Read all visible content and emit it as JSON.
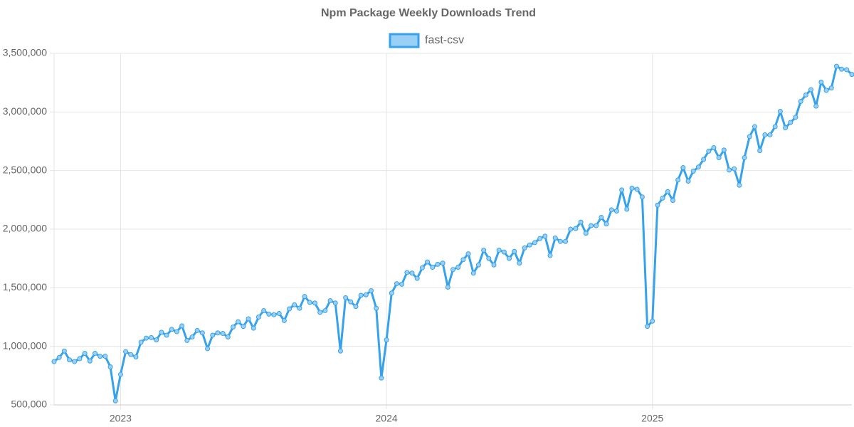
{
  "chart_data": {
    "type": "line",
    "title": "Npm Package Weekly Downloads Trend",
    "categories": [
      null,
      null,
      null,
      null,
      null,
      null,
      null,
      null,
      null,
      null,
      null,
      null,
      null,
      "2023",
      null,
      null,
      null,
      null,
      null,
      null,
      null,
      null,
      null,
      null,
      null,
      null,
      null,
      null,
      null,
      null,
      null,
      null,
      null,
      null,
      null,
      null,
      null,
      null,
      null,
      null,
      null,
      null,
      null,
      null,
      null,
      null,
      null,
      null,
      null,
      null,
      null,
      null,
      null,
      null,
      null,
      null,
      null,
      null,
      null,
      null,
      null,
      null,
      null,
      null,
      null,
      "2024",
      null,
      null,
      null,
      null,
      null,
      null,
      null,
      null,
      null,
      null,
      null,
      null,
      null,
      null,
      null,
      null,
      null,
      null,
      null,
      null,
      null,
      null,
      null,
      null,
      null,
      null,
      null,
      null,
      null,
      null,
      null,
      null,
      null,
      null,
      null,
      null,
      null,
      null,
      null,
      null,
      null,
      null,
      null,
      null,
      null,
      null,
      null,
      null,
      null,
      null,
      null,
      "2025",
      null,
      null,
      null,
      null,
      null,
      null,
      null,
      null,
      null,
      null,
      null,
      null,
      null,
      null,
      null,
      null,
      null,
      null,
      null,
      null,
      null,
      null,
      null,
      null,
      null,
      null,
      null,
      null,
      null,
      null,
      null,
      null,
      null,
      null,
      null,
      null,
      null,
      null,
      null
    ],
    "series": [
      {
        "name": "fast-csv",
        "color": "#36a2eb",
        "fill": "#9ad0f5",
        "values": [
          870000,
          905000,
          960000,
          885000,
          870000,
          895000,
          940000,
          875000,
          940000,
          915000,
          915000,
          825000,
          535000,
          760000,
          955000,
          930000,
          910000,
          1035000,
          1070000,
          1075000,
          1055000,
          1120000,
          1095000,
          1145000,
          1125000,
          1175000,
          1050000,
          1080000,
          1135000,
          1115000,
          980000,
          1095000,
          1115000,
          1110000,
          1080000,
          1165000,
          1210000,
          1170000,
          1235000,
          1155000,
          1250000,
          1305000,
          1275000,
          1270000,
          1280000,
          1220000,
          1320000,
          1355000,
          1325000,
          1425000,
          1375000,
          1370000,
          1290000,
          1305000,
          1390000,
          1370000,
          960000,
          1415000,
          1380000,
          1340000,
          1435000,
          1440000,
          1475000,
          1325000,
          730000,
          1055000,
          1455000,
          1535000,
          1530000,
          1630000,
          1625000,
          1580000,
          1670000,
          1720000,
          1675000,
          1700000,
          1710000,
          1505000,
          1655000,
          1675000,
          1740000,
          1790000,
          1625000,
          1695000,
          1820000,
          1750000,
          1695000,
          1820000,
          1805000,
          1750000,
          1810000,
          1710000,
          1840000,
          1865000,
          1885000,
          1920000,
          1940000,
          1775000,
          1925000,
          1895000,
          1895000,
          2000000,
          2005000,
          2060000,
          1965000,
          2030000,
          2030000,
          2100000,
          2045000,
          2165000,
          2155000,
          2335000,
          2170000,
          2350000,
          2340000,
          2275000,
          1170000,
          1215000,
          2205000,
          2265000,
          2320000,
          2245000,
          2420000,
          2525000,
          2410000,
          2495000,
          2530000,
          2595000,
          2665000,
          2695000,
          2610000,
          2675000,
          2505000,
          2515000,
          2375000,
          2610000,
          2790000,
          2875000,
          2670000,
          2805000,
          2805000,
          2875000,
          3005000,
          2865000,
          2910000,
          2955000,
          3090000,
          3145000,
          3190000,
          3050000,
          3255000,
          3185000,
          3205000,
          3390000,
          3365000,
          3360000,
          3320000
        ]
      }
    ],
    "ylim": [
      500000,
      3500000
    ],
    "yticks": [
      {
        "value": 500000,
        "label": "500,000"
      },
      {
        "value": 1000000,
        "label": "1,000,000"
      },
      {
        "value": 1500000,
        "label": "1,500,000"
      },
      {
        "value": 2000000,
        "label": "2,000,000"
      },
      {
        "value": 2500000,
        "label": "2,500,000"
      },
      {
        "value": 3000000,
        "label": "3,000,000"
      },
      {
        "value": 3500000,
        "label": "3,500,000"
      }
    ],
    "grid": true,
    "legend": "top"
  }
}
